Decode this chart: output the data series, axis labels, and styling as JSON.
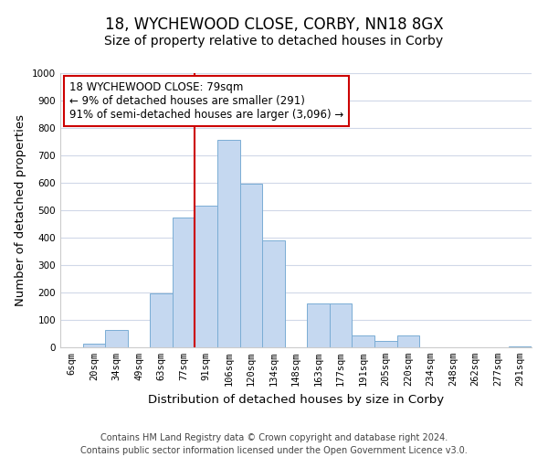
{
  "title": "18, WYCHEWOOD CLOSE, CORBY, NN18 8GX",
  "subtitle": "Size of property relative to detached houses in Corby",
  "xlabel": "Distribution of detached houses by size in Corby",
  "ylabel": "Number of detached properties",
  "categories": [
    "6sqm",
    "20sqm",
    "34sqm",
    "49sqm",
    "63sqm",
    "77sqm",
    "91sqm",
    "106sqm",
    "120sqm",
    "134sqm",
    "148sqm",
    "163sqm",
    "177sqm",
    "191sqm",
    "205sqm",
    "220sqm",
    "234sqm",
    "248sqm",
    "262sqm",
    "277sqm",
    "291sqm"
  ],
  "values": [
    0,
    13,
    62,
    0,
    197,
    472,
    516,
    757,
    597,
    390,
    0,
    160,
    160,
    43,
    22,
    44,
    0,
    0,
    0,
    0,
    5
  ],
  "bar_color": "#c5d8f0",
  "bar_edge_color": "#7aadd4",
  "vline_x_index": 5,
  "vline_color": "#cc0000",
  "annotation_line1": "18 WYCHEWOOD CLOSE: 79sqm",
  "annotation_line2": "← 9% of detached houses are smaller (291)",
  "annotation_line3": "91% of semi-detached houses are larger (3,096) →",
  "annotation_box_color": "#ffffff",
  "annotation_box_edge_color": "#cc0000",
  "ylim": [
    0,
    1000
  ],
  "yticks": [
    0,
    100,
    200,
    300,
    400,
    500,
    600,
    700,
    800,
    900,
    1000
  ],
  "footer_line1": "Contains HM Land Registry data © Crown copyright and database right 2024.",
  "footer_line2": "Contains public sector information licensed under the Open Government Licence v3.0.",
  "title_fontsize": 12,
  "subtitle_fontsize": 10,
  "axis_label_fontsize": 9.5,
  "tick_fontsize": 7.5,
  "annotation_fontsize": 8.5,
  "footer_fontsize": 7,
  "background_color": "#ffffff",
  "grid_color": "#d0d8e8"
}
